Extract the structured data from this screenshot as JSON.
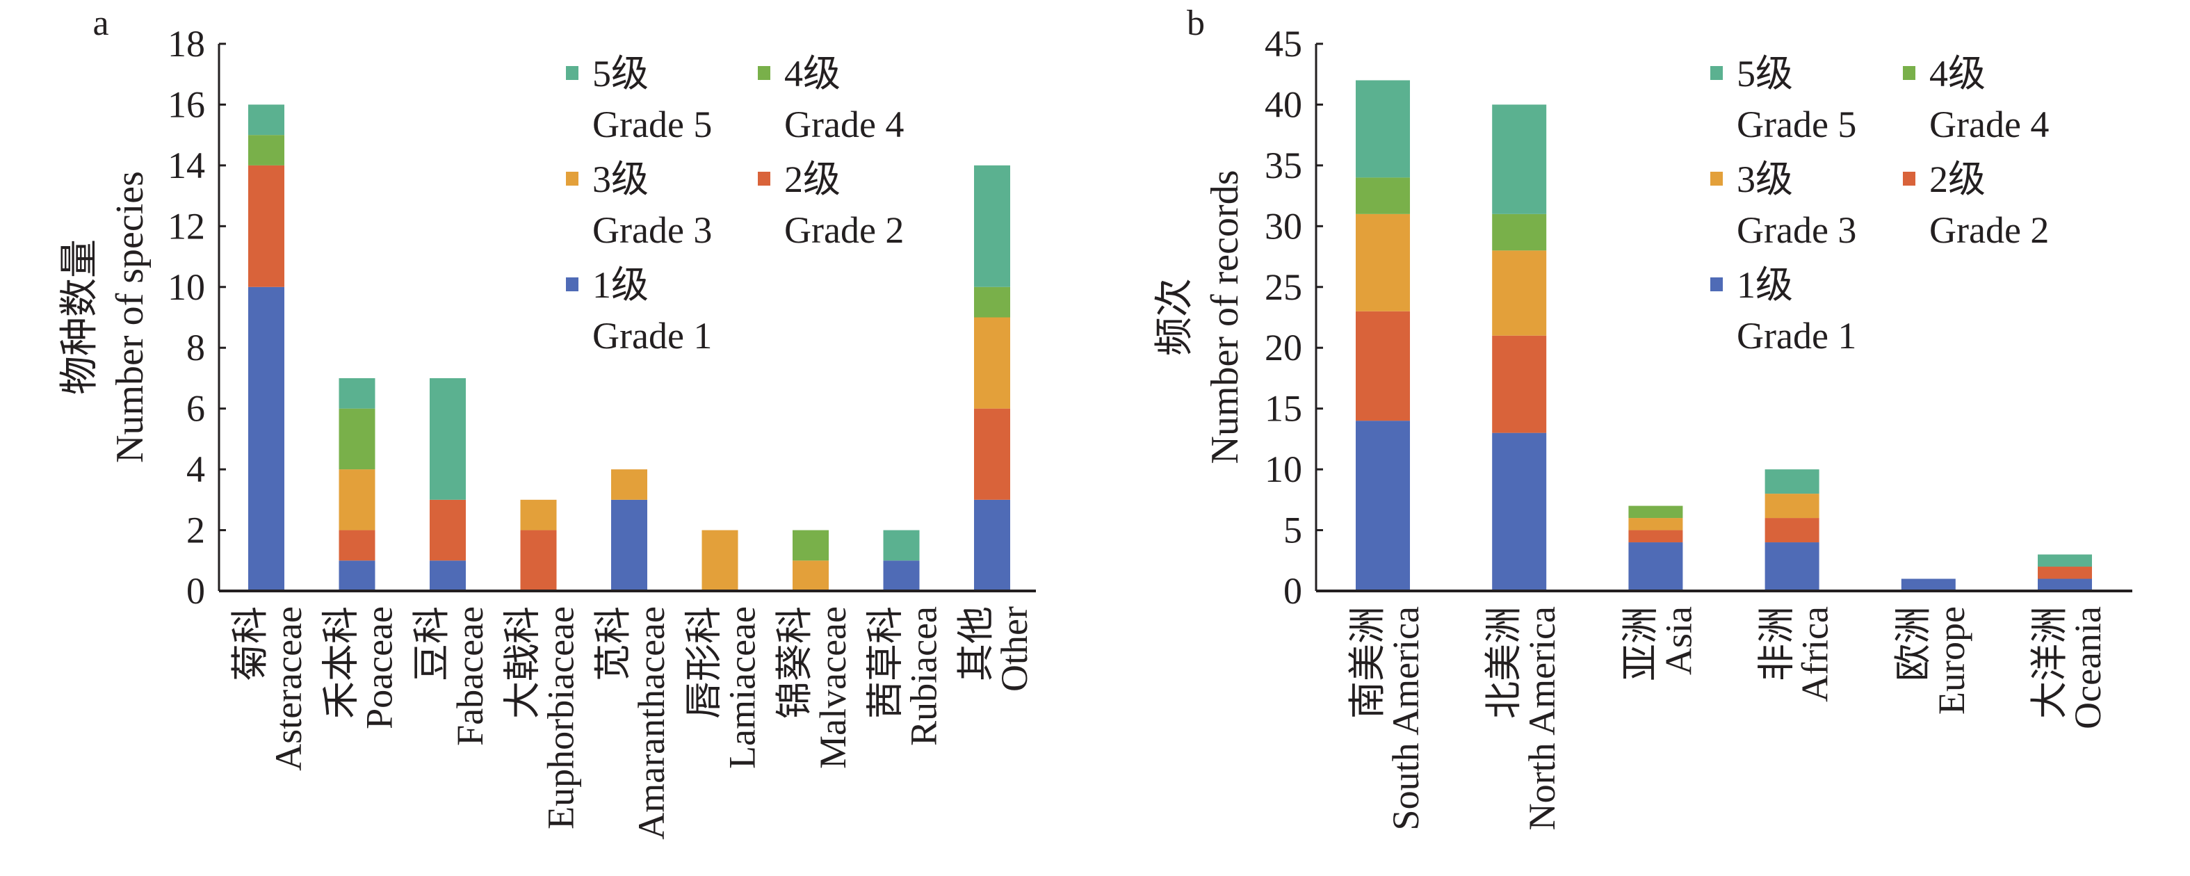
{
  "colors": {
    "grade1": "#4f6bb6",
    "grade2": "#d9633a",
    "grade3": "#e3a03a",
    "grade4": "#79b04a",
    "grade5": "#5bb190"
  },
  "chart_data": [
    {
      "type": "bar",
      "stacked": true,
      "panel_label": "a",
      "ylabel_cn": "物种数量",
      "ylabel": "Number of species",
      "ylim": [
        0,
        18
      ],
      "yticks": [
        0,
        2,
        4,
        6,
        8,
        10,
        12,
        14,
        16,
        18
      ],
      "categories_cn": [
        "菊科",
        "禾本科",
        "豆科",
        "大戟科",
        "苋科",
        "唇形科",
        "锦葵科",
        "茜草科",
        "其他"
      ],
      "categories": [
        "Asteraceae",
        "Poaceae",
        "Fabaceae",
        "Euphorbiaceae",
        "Amaranthaceae",
        "Lamiaceae",
        "Malvaceae",
        "Rubiacea",
        "Other"
      ],
      "series": [
        {
          "name_cn": "1级",
          "name": "Grade 1",
          "key": "grade1",
          "values": [
            10,
            1,
            1,
            0,
            3,
            0,
            0,
            1,
            3
          ]
        },
        {
          "name_cn": "2级",
          "name": "Grade 2",
          "key": "grade2",
          "values": [
            4,
            1,
            2,
            2,
            0,
            0,
            0,
            0,
            3
          ]
        },
        {
          "name_cn": "3级",
          "name": "Grade 3",
          "key": "grade3",
          "values": [
            0,
            2,
            0,
            1,
            1,
            2,
            1,
            0,
            3
          ]
        },
        {
          "name_cn": "4级",
          "name": "Grade 4",
          "key": "grade4",
          "values": [
            1,
            2,
            0,
            0,
            0,
            0,
            1,
            0,
            1
          ]
        },
        {
          "name_cn": "5级",
          "name": "Grade 5",
          "key": "grade5",
          "values": [
            1,
            1,
            4,
            0,
            0,
            0,
            0,
            1,
            4
          ]
        }
      ],
      "legend": "top-right",
      "grid": false
    },
    {
      "type": "bar",
      "stacked": true,
      "panel_label": "b",
      "ylabel_cn": "频次",
      "ylabel": "Number of records",
      "ylim": [
        0,
        45
      ],
      "yticks": [
        0,
        5,
        10,
        15,
        20,
        25,
        30,
        35,
        40,
        45
      ],
      "categories_cn": [
        "南美洲",
        "北美洲",
        "亚洲",
        "非洲",
        "欧洲",
        "大洋洲"
      ],
      "categories": [
        "South America",
        "North America",
        "Asia",
        "Africa",
        "Europe",
        "Oceania"
      ],
      "series": [
        {
          "name_cn": "1级",
          "name": "Grade 1",
          "key": "grade1",
          "values": [
            14,
            13,
            4,
            4,
            1,
            1
          ]
        },
        {
          "name_cn": "2级",
          "name": "Grade 2",
          "key": "grade2",
          "values": [
            9,
            8,
            1,
            2,
            0,
            1
          ]
        },
        {
          "name_cn": "3级",
          "name": "Grade 3",
          "key": "grade3",
          "values": [
            8,
            7,
            1,
            2,
            0,
            0
          ]
        },
        {
          "name_cn": "4级",
          "name": "Grade 4",
          "key": "grade4",
          "values": [
            3,
            3,
            1,
            0,
            0,
            0
          ]
        },
        {
          "name_cn": "5级",
          "name": "Grade 5",
          "key": "grade5",
          "values": [
            8,
            9,
            0,
            2,
            0,
            1
          ]
        }
      ],
      "legend": "top-right",
      "grid": false
    }
  ]
}
